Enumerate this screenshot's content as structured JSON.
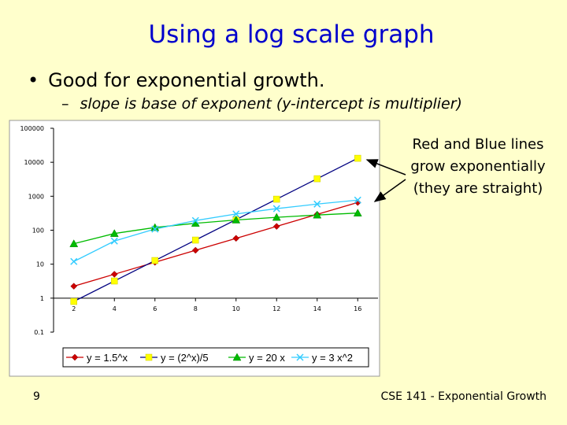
{
  "slide": {
    "title": "Using a log scale graph",
    "bullet1": "Good for exponential growth.",
    "bullet2": "slope is base of exponent (y-intercept is multiplier)",
    "callout_lines": [
      "Red and Blue lines",
      "grow exponentially",
      "(they are straight)"
    ],
    "slide_number": "9",
    "footer": "CSE 141 - Exponential Growth"
  },
  "chart_data": {
    "type": "line",
    "yscale": "log",
    "x": [
      2,
      4,
      6,
      8,
      10,
      12,
      14,
      16
    ],
    "x_tick_labels": [
      "2",
      "4",
      "6",
      "8",
      "10",
      "12",
      "14",
      "16"
    ],
    "y_ticks": [
      0.1,
      1,
      10,
      100,
      1000,
      10000,
      100000
    ],
    "y_tick_labels": [
      "0.1",
      "1",
      "10",
      "100",
      "1000",
      "10000",
      "100000"
    ],
    "ylim": [
      0.1,
      100000
    ],
    "grid": false,
    "legend": "bottom",
    "series": [
      {
        "name": "y = 1.5^x",
        "color": "#cc0000",
        "marker": "diamond",
        "values": [
          2.25,
          5.06,
          11.39,
          25.63,
          57.67,
          129.75,
          291.93,
          656.84
        ]
      },
      {
        "name": "y = (2^x)/5",
        "color": "#ffff00",
        "marker": "square",
        "values": [
          0.8,
          3.2,
          12.8,
          51.2,
          204.8,
          819.2,
          3276.8,
          13107.2
        ]
      },
      {
        "name": "y = 20 x",
        "color": "#00bb00",
        "marker": "triangle",
        "values": [
          40,
          80,
          120,
          160,
          200,
          240,
          280,
          320
        ]
      },
      {
        "name": "y = 3 x^2",
        "color": "#33ccff",
        "marker": "x",
        "values": [
          12,
          48,
          108,
          192,
          300,
          432,
          588,
          768
        ]
      }
    ]
  }
}
